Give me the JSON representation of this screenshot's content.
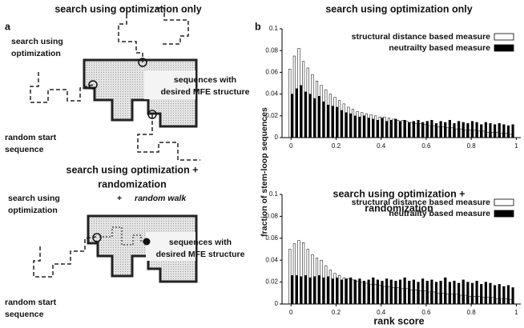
{
  "panel_a": {
    "label": "a",
    "top": {
      "title": "search using optimization only",
      "search": [
        "search using",
        "optimization"
      ],
      "target": [
        "sequences with",
        "desired MFE structure"
      ],
      "start": [
        "random start",
        "sequence"
      ]
    },
    "bottom": {
      "title": [
        "search using optimization +",
        "randomization"
      ],
      "search": [
        "search using",
        "optimization"
      ],
      "plus": "+",
      "walk": "random walk",
      "target": [
        "sequences with",
        "desired MFE structure"
      ],
      "start": [
        "random start",
        "sequence"
      ]
    }
  },
  "panel_b": {
    "label": "b",
    "y_label": "fraction of stem-loop sequences",
    "x_label": "rank score"
  },
  "chart_data": [
    {
      "type": "bar",
      "title": "search using optimization only",
      "x": [
        0,
        0.02,
        0.04,
        0.06,
        0.08,
        0.1,
        0.12,
        0.14,
        0.16,
        0.18,
        0.2,
        0.22,
        0.24,
        0.26,
        0.28,
        0.3,
        0.32,
        0.34,
        0.36,
        0.38,
        0.4,
        0.42,
        0.44,
        0.46,
        0.48,
        0.5,
        0.52,
        0.54,
        0.56,
        0.58,
        0.6,
        0.62,
        0.64,
        0.66,
        0.68,
        0.7,
        0.72,
        0.74,
        0.76,
        0.78,
        0.8,
        0.82,
        0.84,
        0.86,
        0.88,
        0.9,
        0.92,
        0.94,
        0.96,
        0.98
      ],
      "series": [
        {
          "name": "structural distance based measure",
          "color": "#ffffff",
          "values": [
            0.063,
            0.075,
            0.082,
            0.07,
            0.064,
            0.058,
            0.052,
            0.048,
            0.044,
            0.04,
            0.037,
            0.034,
            0.031,
            0.028,
            0.026,
            0.024,
            0.023,
            0.022,
            0.021,
            0.02,
            0.019,
            0.019,
            0.018,
            0.017,
            0.016,
            0.016,
            0.015,
            0.014,
            0.013,
            0.013,
            0.012,
            0.011,
            0.011,
            0.01,
            0.01,
            0.009,
            0.009,
            0.008,
            0.008,
            0.007,
            0.007,
            0.007,
            0.006,
            0.006,
            0.005,
            0.005,
            0.005,
            0.004,
            0.004,
            0.003
          ]
        },
        {
          "name": "neutrailty based measure",
          "color": "#000000",
          "values": [
            0.04,
            0.045,
            0.048,
            0.042,
            0.04,
            0.036,
            0.038,
            0.033,
            0.03,
            0.029,
            0.028,
            0.025,
            0.023,
            0.022,
            0.02,
            0.019,
            0.02,
            0.018,
            0.017,
            0.016,
            0.018,
            0.015,
            0.016,
            0.017,
            0.015,
            0.016,
            0.014,
            0.015,
            0.016,
            0.014,
            0.015,
            0.016,
            0.013,
            0.015,
            0.014,
            0.016,
            0.013,
            0.015,
            0.014,
            0.013,
            0.015,
            0.014,
            0.012,
            0.014,
            0.013,
            0.012,
            0.013,
            0.012,
            0.011,
            0.012
          ]
        }
      ],
      "xlim": [
        -0.04,
        1.02
      ],
      "ylim": [
        0,
        0.1
      ],
      "xticks": [
        0,
        0.2,
        0.4,
        0.6,
        0.8,
        1
      ],
      "yticks": [
        0,
        0.02,
        0.04,
        0.06,
        0.08,
        0.1
      ]
    },
    {
      "type": "bar",
      "title": [
        "search using optimization +",
        "randomization"
      ],
      "x": [
        0,
        0.02,
        0.04,
        0.06,
        0.08,
        0.1,
        0.12,
        0.14,
        0.16,
        0.18,
        0.2,
        0.22,
        0.24,
        0.26,
        0.28,
        0.3,
        0.32,
        0.34,
        0.36,
        0.38,
        0.4,
        0.42,
        0.44,
        0.46,
        0.48,
        0.5,
        0.52,
        0.54,
        0.56,
        0.58,
        0.6,
        0.62,
        0.64,
        0.66,
        0.68,
        0.7,
        0.72,
        0.74,
        0.76,
        0.78,
        0.8,
        0.82,
        0.84,
        0.86,
        0.88,
        0.9,
        0.92,
        0.94,
        0.96,
        0.98
      ],
      "series": [
        {
          "name": "structural distance based measure",
          "color": "#ffffff",
          "values": [
            0.05,
            0.055,
            0.058,
            0.056,
            0.05,
            0.045,
            0.042,
            0.04,
            0.035,
            0.031,
            0.028,
            0.026,
            0.024,
            0.023,
            0.022,
            0.021,
            0.02,
            0.019,
            0.018,
            0.018,
            0.017,
            0.016,
            0.016,
            0.015,
            0.015,
            0.014,
            0.014,
            0.013,
            0.013,
            0.012,
            0.012,
            0.011,
            0.011,
            0.01,
            0.01,
            0.009,
            0.009,
            0.009,
            0.008,
            0.008,
            0.007,
            0.007,
            0.007,
            0.006,
            0.006,
            0.006,
            0.005,
            0.005,
            0.005,
            0.004
          ]
        },
        {
          "name": "neutrailty based measure",
          "color": "#000000",
          "values": [
            0.026,
            0.026,
            0.025,
            0.026,
            0.024,
            0.025,
            0.026,
            0.024,
            0.025,
            0.023,
            0.024,
            0.022,
            0.023,
            0.024,
            0.022,
            0.023,
            0.021,
            0.022,
            0.024,
            0.022,
            0.021,
            0.023,
            0.022,
            0.021,
            0.022,
            0.024,
            0.021,
            0.022,
            0.02,
            0.023,
            0.021,
            0.022,
            0.02,
            0.021,
            0.024,
            0.02,
            0.021,
            0.019,
            0.022,
            0.02,
            0.019,
            0.021,
            0.018,
            0.02,
            0.019,
            0.017,
            0.018,
            0.016,
            0.017,
            0.015
          ]
        }
      ],
      "xlim": [
        -0.04,
        1.02
      ],
      "ylim": [
        0,
        0.1
      ],
      "xticks": [
        0,
        0.2,
        0.4,
        0.6,
        0.8,
        1
      ],
      "yticks": [
        0,
        0.02,
        0.04,
        0.06,
        0.08,
        0.1
      ]
    }
  ]
}
